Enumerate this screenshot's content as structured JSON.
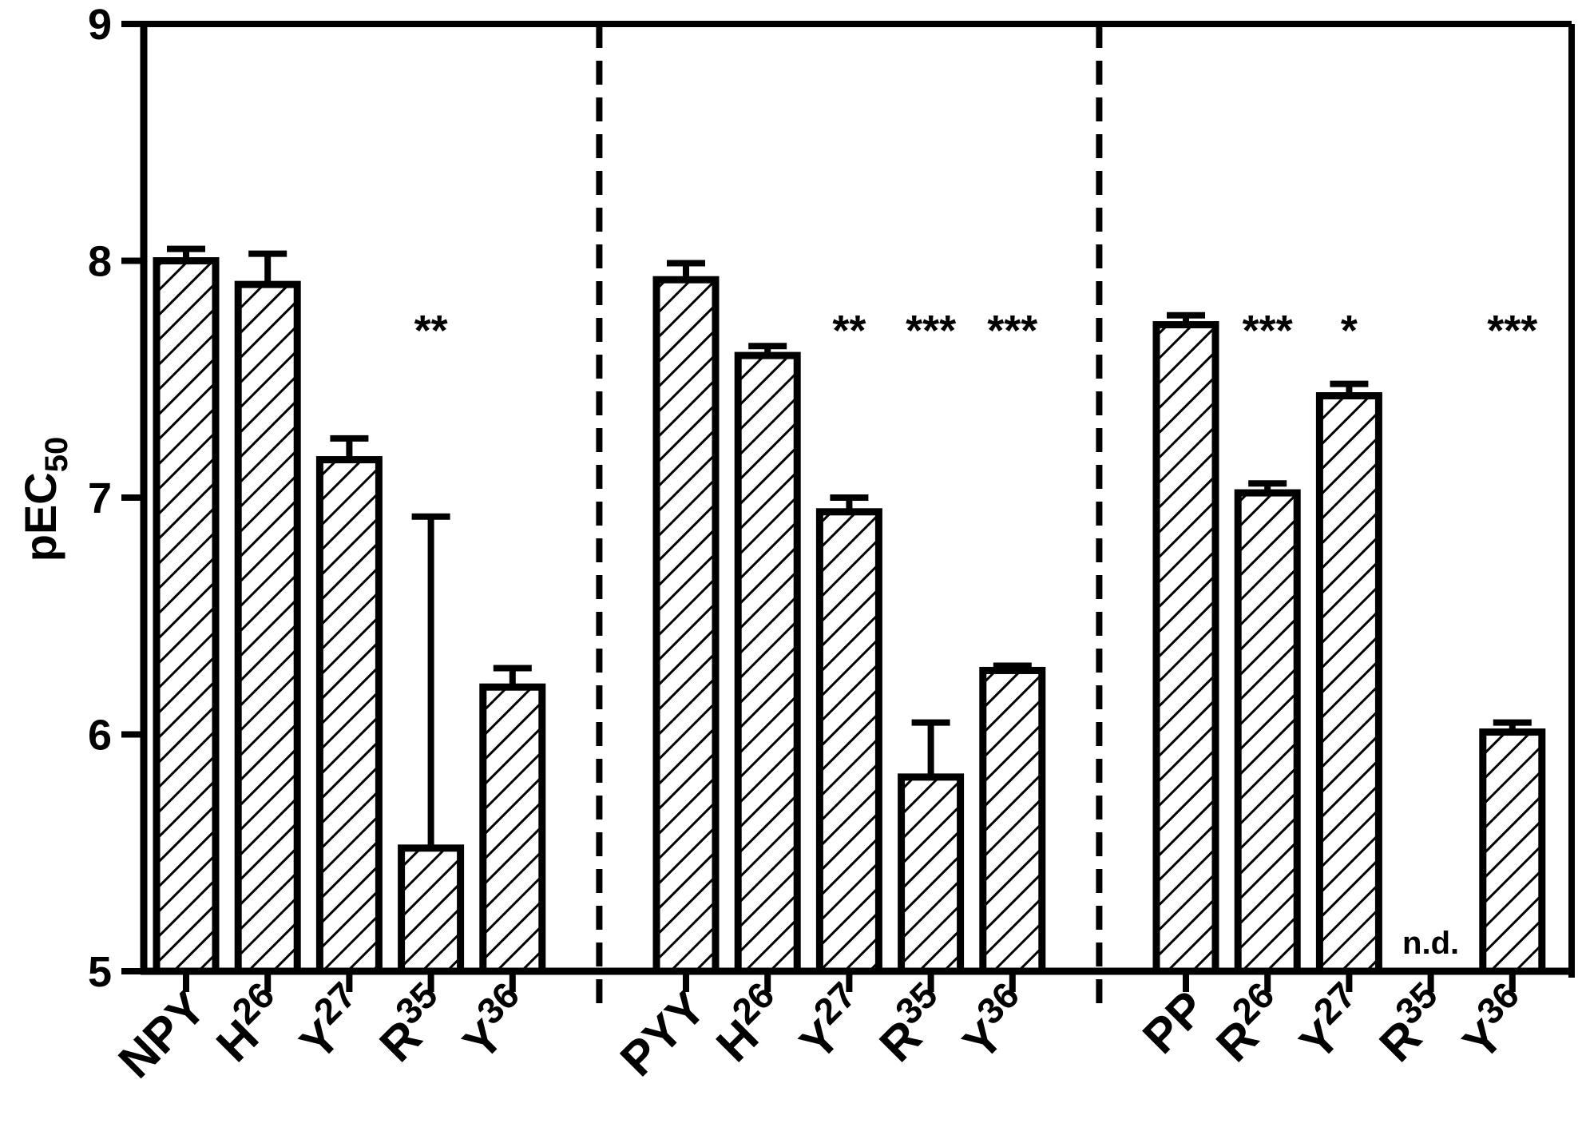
{
  "chart_data": {
    "type": "bar",
    "ylabel": "pEC",
    "ylabel_sub": "50",
    "ylim": [
      5,
      9
    ],
    "yticks": [
      "5",
      "6",
      "7",
      "8",
      "9"
    ],
    "grid": false,
    "bar_fill": "diagonal-hatch",
    "colors": {
      "ink": "#000000",
      "bar_bg": "#ffffff"
    },
    "categories": [
      {
        "base": "NPY",
        "sup": "",
        "group": "NPY"
      },
      {
        "base": "H",
        "sup": "26",
        "group": "NPY"
      },
      {
        "base": "Y",
        "sup": "27",
        "group": "NPY"
      },
      {
        "base": "R",
        "sup": "35",
        "group": "NPY"
      },
      {
        "base": "Y",
        "sup": "36",
        "group": "NPY"
      },
      {
        "base": "PYY",
        "sup": "",
        "group": "PYY"
      },
      {
        "base": "H",
        "sup": "26",
        "group": "PYY"
      },
      {
        "base": "Y",
        "sup": "27",
        "group": "PYY"
      },
      {
        "base": "R",
        "sup": "35",
        "group": "PYY"
      },
      {
        "base": "Y",
        "sup": "36",
        "group": "PYY"
      },
      {
        "base": "PP",
        "sup": "",
        "group": "PP"
      },
      {
        "base": "R",
        "sup": "26",
        "group": "PP"
      },
      {
        "base": "Y",
        "sup": "27",
        "group": "PP"
      },
      {
        "base": "R",
        "sup": "35",
        "group": "PP"
      },
      {
        "base": "Y",
        "sup": "36",
        "group": "PP"
      }
    ],
    "values": [
      8.0,
      7.9,
      7.16,
      5.52,
      6.2,
      7.92,
      7.6,
      6.94,
      5.82,
      6.27,
      7.73,
      7.02,
      7.43,
      null,
      6.01
    ],
    "error": [
      0.05,
      0.13,
      0.09,
      1.4,
      0.08,
      0.07,
      0.04,
      0.06,
      0.23,
      0.02,
      0.04,
      0.04,
      0.05,
      null,
      0.04
    ],
    "significance": [
      "",
      "",
      "",
      "**",
      "",
      "",
      "",
      "**",
      "***",
      "***",
      "",
      "***",
      "*",
      "",
      "***"
    ],
    "not_determined": [
      "",
      "",
      "",
      "",
      "",
      "",
      "",
      "",
      "",
      "",
      "",
      "",
      "",
      "n.d.",
      ""
    ],
    "group_separators_after": [
      4,
      9
    ]
  }
}
